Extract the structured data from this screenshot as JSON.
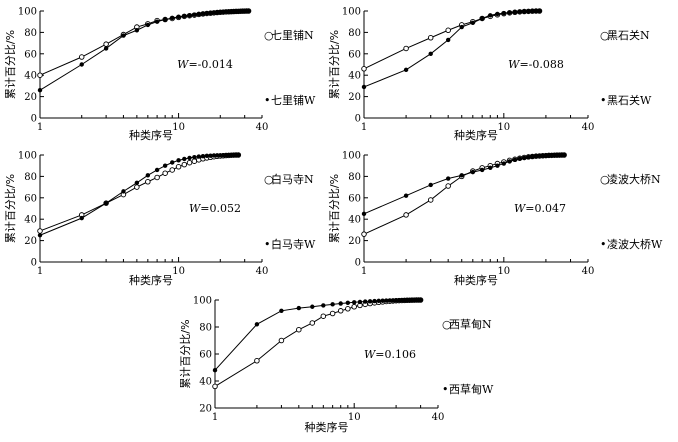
{
  "legend_marks": {
    "N": "○",
    "W": "•"
  },
  "chart_data": [
    {
      "type": "line",
      "x_scale": "log",
      "xlim": [
        1,
        40
      ],
      "ylim": [
        0,
        100
      ],
      "xticks": [
        1,
        10,
        40
      ],
      "yticks": [
        0,
        20,
        40,
        60,
        80,
        100
      ],
      "xlabel": "种类序号",
      "ylabel": "累计百分比/%",
      "stat_label": "W",
      "stat_value": "=-0.014",
      "series": [
        {
          "name": "七里铺N",
          "marker": "open",
          "x": [
            1,
            2,
            3,
            4,
            5,
            6,
            7,
            8,
            9,
            10,
            11,
            12,
            13,
            14,
            15,
            16,
            17,
            18,
            19,
            20,
            21,
            22,
            23,
            24,
            25,
            26,
            27,
            28,
            29,
            30,
            31,
            32
          ],
          "y": [
            40,
            57,
            69,
            78,
            85,
            88,
            91,
            92,
            93,
            94,
            95,
            95.6,
            96.2,
            96.8,
            97.3,
            97.7,
            98,
            98.3,
            98.6,
            98.8,
            99,
            99.2,
            99.3,
            99.4,
            99.5,
            99.6,
            99.7,
            99.8,
            99.85,
            99.9,
            99.95,
            100
          ]
        },
        {
          "name": "七里铺W",
          "marker": "filled",
          "x": [
            1,
            2,
            3,
            4,
            5,
            6,
            7,
            8,
            9,
            10,
            11,
            12,
            13,
            14,
            15,
            16,
            17,
            18,
            19,
            20,
            21,
            22,
            23,
            24,
            25,
            26,
            27,
            28,
            29,
            30,
            31,
            32
          ],
          "y": [
            26,
            50,
            65,
            77,
            82,
            87,
            90,
            92,
            93.5,
            94.5,
            95.3,
            96,
            96.6,
            97.1,
            97.5,
            97.9,
            98.2,
            98.5,
            98.7,
            98.9,
            99.1,
            99.3,
            99.4,
            99.5,
            99.6,
            99.7,
            99.75,
            99.8,
            99.85,
            99.9,
            99.95,
            100
          ]
        }
      ]
    },
    {
      "type": "line",
      "x_scale": "log",
      "xlim": [
        1,
        40
      ],
      "ylim": [
        0,
        100
      ],
      "xticks": [
        1,
        10,
        40
      ],
      "yticks": [
        0,
        20,
        40,
        60,
        80,
        100
      ],
      "xlabel": "种类序号",
      "ylabel": "累计百分比/%",
      "stat_label": "W",
      "stat_value": "=-0.088",
      "series": [
        {
          "name": "黑石关N",
          "marker": "open",
          "x": [
            1,
            2,
            3,
            4,
            5,
            6,
            7,
            8,
            9,
            10,
            11,
            12,
            13,
            14,
            15,
            16,
            17,
            18
          ],
          "y": [
            46,
            65,
            75,
            82,
            87,
            90,
            93,
            95,
            96.5,
            97.5,
            98.3,
            98.8,
            99.2,
            99.5,
            99.7,
            99.85,
            99.95,
            100
          ]
        },
        {
          "name": "黑石关W",
          "marker": "filled",
          "x": [
            1,
            2,
            3,
            4,
            5,
            6,
            7,
            8,
            9,
            10,
            11,
            12,
            13,
            14,
            15,
            16,
            17,
            18
          ],
          "y": [
            29,
            45,
            60,
            73,
            85,
            89,
            93,
            96,
            97.2,
            98,
            98.6,
            99,
            99.3,
            99.55,
            99.75,
            99.9,
            99.97,
            100
          ]
        }
      ]
    },
    {
      "type": "line",
      "x_scale": "log",
      "xlim": [
        1,
        40
      ],
      "ylim": [
        0,
        100
      ],
      "xticks": [
        1,
        10,
        40
      ],
      "yticks": [
        0,
        20,
        40,
        60,
        80,
        100
      ],
      "xlabel": "种类序号",
      "ylabel": "累计百分比/%",
      "stat_label": "W",
      "stat_value": "=0.052",
      "series": [
        {
          "name": "白马寺N",
          "marker": "open",
          "x": [
            1,
            2,
            3,
            4,
            5,
            6,
            7,
            8,
            9,
            10,
            11,
            12,
            13,
            14,
            15,
            16,
            17,
            18,
            19,
            20,
            21,
            22,
            23,
            24,
            25,
            26,
            27
          ],
          "y": [
            29,
            44,
            55,
            63,
            70,
            75,
            79,
            83,
            86,
            89,
            91,
            92.8,
            94.2,
            95.5,
            96.5,
            97.3,
            97.9,
            98.4,
            98.8,
            99.1,
            99.3,
            99.5,
            99.65,
            99.8,
            99.9,
            99.95,
            100
          ]
        },
        {
          "name": "白马寺W",
          "marker": "filled",
          "x": [
            1,
            2,
            3,
            4,
            5,
            6,
            7,
            8,
            9,
            10,
            11,
            12,
            13,
            14,
            15,
            16,
            17,
            18,
            19,
            20,
            21,
            22,
            23,
            24,
            25,
            26,
            27
          ],
          "y": [
            25,
            41,
            55,
            66,
            74,
            81,
            86,
            90,
            93,
            95,
            96.3,
            97.3,
            98,
            98.5,
            98.9,
            99.2,
            99.4,
            99.55,
            99.65,
            99.75,
            99.82,
            99.88,
            99.92,
            99.95,
            99.97,
            99.99,
            100
          ]
        }
      ]
    },
    {
      "type": "line",
      "x_scale": "log",
      "xlim": [
        1,
        40
      ],
      "ylim": [
        0,
        100
      ],
      "xticks": [
        1,
        10,
        40
      ],
      "yticks": [
        0,
        20,
        40,
        60,
        80,
        100
      ],
      "xlabel": "种类序号",
      "ylabel": "累计百分比/%",
      "stat_label": "W",
      "stat_value": "=0.047",
      "series": [
        {
          "name": "凌波大桥N",
          "marker": "open",
          "x": [
            1,
            2,
            3,
            4,
            5,
            6,
            7,
            8,
            9,
            10,
            11,
            12,
            13,
            14,
            15,
            16,
            17,
            18,
            19,
            20,
            21,
            22,
            23,
            24,
            25,
            26,
            27
          ],
          "y": [
            26,
            44,
            58,
            71,
            80,
            85,
            88,
            90,
            92,
            93.5,
            95,
            96,
            97,
            97.7,
            98.2,
            98.6,
            98.9,
            99.1,
            99.3,
            99.45,
            99.6,
            99.7,
            99.8,
            99.88,
            99.94,
            99.98,
            100
          ]
        },
        {
          "name": "凌波大桥W",
          "marker": "filled",
          "x": [
            1,
            2,
            3,
            4,
            5,
            6,
            7,
            8,
            9,
            10,
            11,
            12,
            13,
            14,
            15,
            16,
            17,
            18,
            19,
            20,
            21,
            22,
            23,
            24,
            25,
            26,
            27
          ],
          "y": [
            45,
            62,
            72,
            78,
            81,
            84,
            86,
            88,
            90,
            92,
            94,
            95.5,
            96.5,
            97.3,
            98,
            98.5,
            98.9,
            99.2,
            99.4,
            99.55,
            99.7,
            99.8,
            99.87,
            99.92,
            99.96,
            99.98,
            100
          ]
        }
      ]
    },
    {
      "type": "line",
      "x_scale": "log",
      "xlim": [
        1,
        40
      ],
      "ylim": [
        20,
        100
      ],
      "xticks": [
        1,
        10,
        40
      ],
      "yticks": [
        20,
        40,
        60,
        80,
        100
      ],
      "xlabel": "种类序号",
      "ylabel": "累计百分比/%",
      "stat_label": "W",
      "stat_value": "=0.106",
      "series": [
        {
          "name": "西草甸N",
          "marker": "open",
          "x": [
            1,
            2,
            3,
            4,
            5,
            6,
            7,
            8,
            9,
            10,
            11,
            12,
            13,
            14,
            15,
            16,
            17,
            18,
            19,
            20,
            21,
            22,
            23,
            24,
            25,
            26,
            27,
            28,
            29,
            30
          ],
          "y": [
            36,
            55,
            70,
            78,
            83,
            88,
            90,
            92,
            93.5,
            95,
            96,
            96.8,
            97.4,
            97.9,
            98.3,
            98.6,
            98.9,
            99.1,
            99.3,
            99.45,
            99.55,
            99.65,
            99.72,
            99.8,
            99.85,
            99.9,
            99.94,
            99.97,
            99.99,
            100
          ]
        },
        {
          "name": "西草甸W",
          "marker": "filled",
          "x": [
            1,
            2,
            3,
            4,
            5,
            6,
            7,
            8,
            9,
            10,
            11,
            12,
            13,
            14,
            15,
            16,
            17,
            18,
            19,
            20,
            21,
            22,
            23,
            24,
            25,
            26,
            27,
            28,
            29,
            30
          ],
          "y": [
            48,
            82,
            92,
            94,
            95,
            96,
            96.8,
            97.4,
            97.9,
            98.3,
            98.6,
            98.85,
            99.05,
            99.2,
            99.35,
            99.45,
            99.55,
            99.63,
            99.7,
            99.76,
            99.81,
            99.85,
            99.88,
            99.91,
            99.93,
            99.95,
            99.97,
            99.98,
            99.99,
            100
          ]
        }
      ]
    }
  ]
}
